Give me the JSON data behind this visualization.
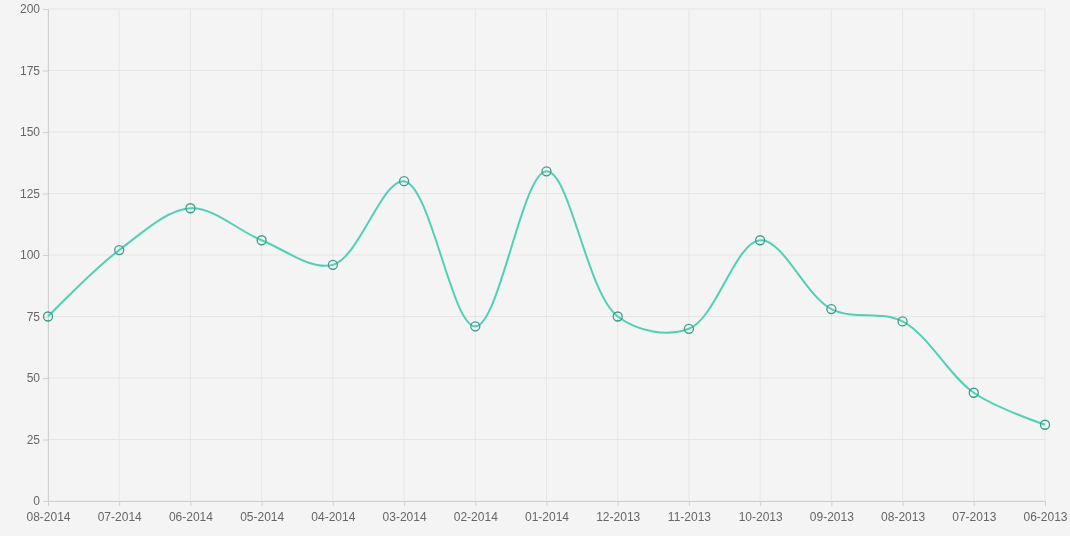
{
  "chart_data": {
    "type": "line",
    "categories": [
      "08-2014",
      "07-2014",
      "06-2014",
      "05-2014",
      "04-2014",
      "03-2014",
      "02-2014",
      "01-2014",
      "12-2013",
      "11-2013",
      "10-2013",
      "09-2013",
      "08-2013",
      "07-2013",
      "06-2013"
    ],
    "series": [
      {
        "color": "#4fd1b5",
        "values": [
          75,
          102,
          119,
          106,
          96,
          130,
          71,
          134,
          75,
          70,
          106,
          78,
          73,
          44,
          31
        ]
      }
    ],
    "ylim": [
      0,
      200
    ],
    "yticks": [
      0,
      25,
      50,
      75,
      100,
      125,
      150,
      175,
      200
    ],
    "grid": true,
    "marker": "circle",
    "line_style": "solid"
  }
}
